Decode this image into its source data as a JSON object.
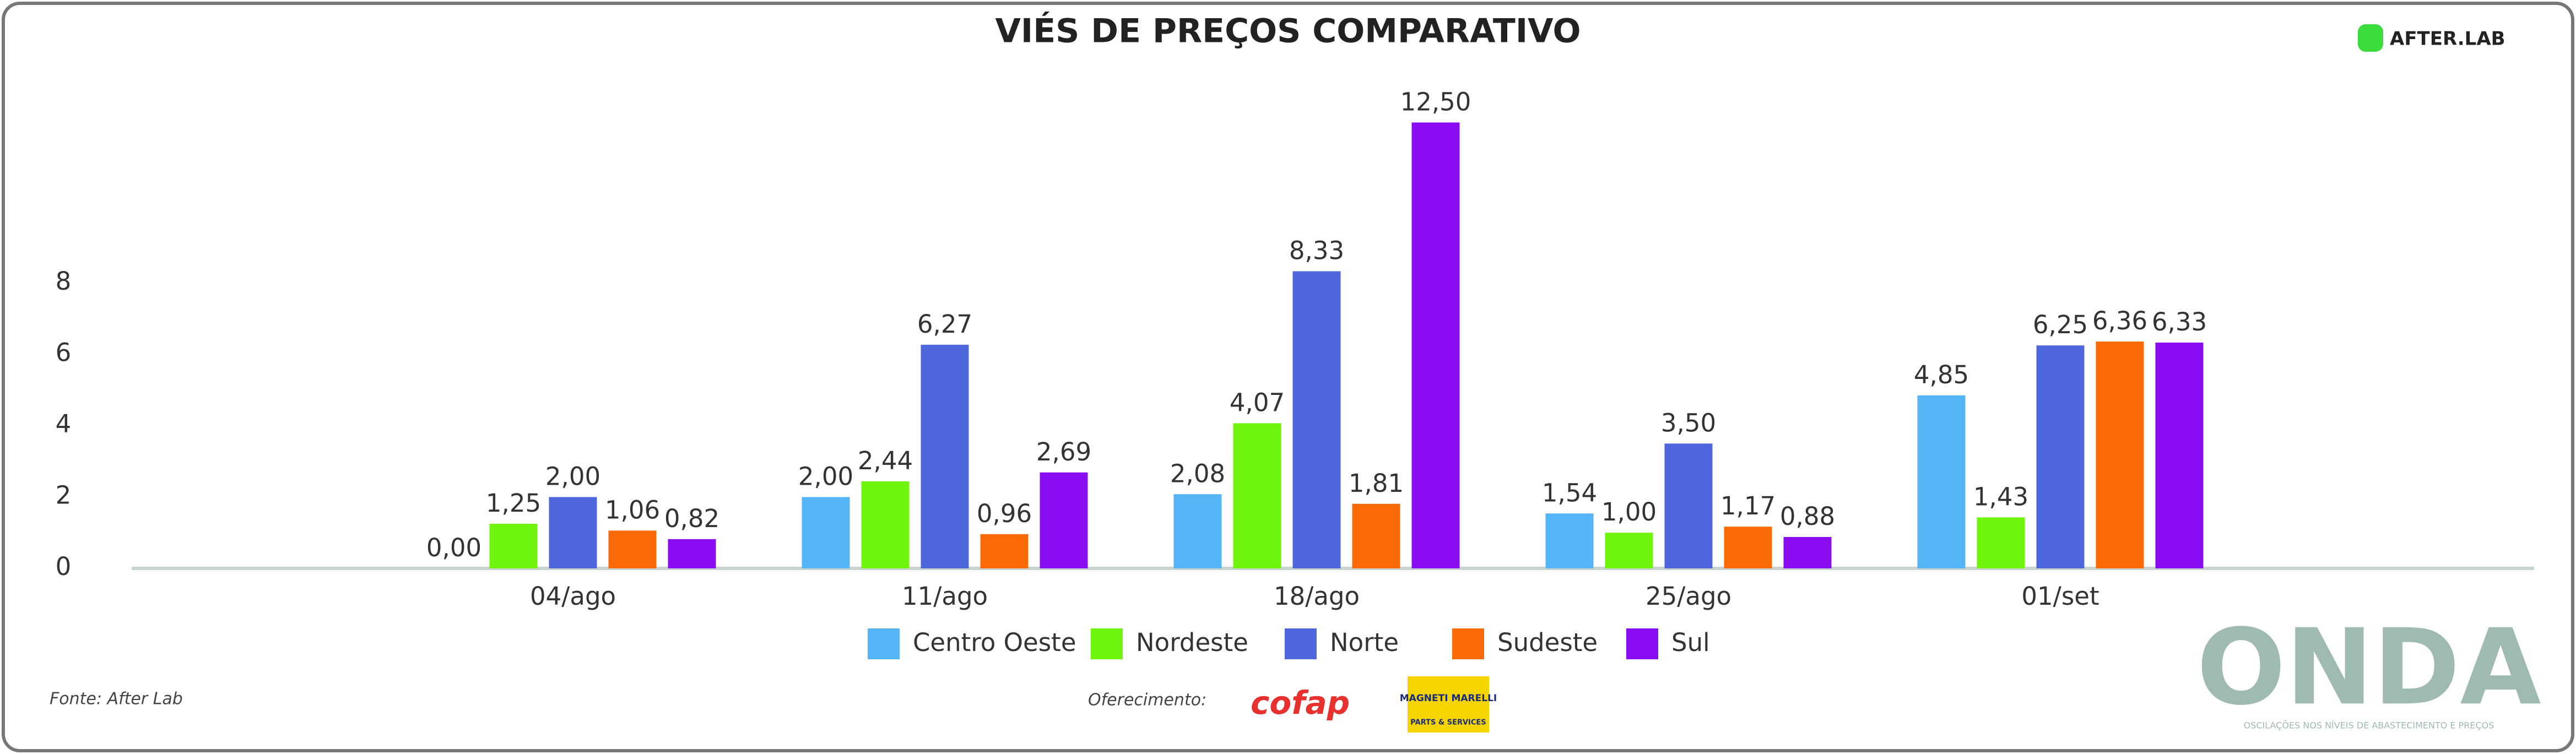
{
  "chart_data": {
    "type": "bar",
    "title": "VIÉS DE PREÇOS COMPARATIVO",
    "categories": [
      "04/ago",
      "11/ago",
      "18/ago",
      "25/ago",
      "01/set"
    ],
    "series": [
      {
        "name": "Centro Oeste",
        "color": "#55b4f6",
        "values": [
          0.0,
          2.0,
          2.08,
          1.54,
          4.85
        ],
        "value_labels": [
          "0,00",
          "2,00",
          "2,08",
          "1,54",
          "4,85"
        ]
      },
      {
        "name": "Nordeste",
        "color": "#6ff40c",
        "values": [
          1.25,
          2.44,
          4.07,
          1.0,
          1.43
        ],
        "value_labels": [
          "1,25",
          "2,44",
          "4,07",
          "1,00",
          "1,43"
        ]
      },
      {
        "name": "Norte",
        "color": "#4f67dc",
        "values": [
          2.0,
          6.27,
          8.33,
          3.5,
          6.25
        ],
        "value_labels": [
          "2,00",
          "6,27",
          "8,33",
          "3,50",
          "6,25"
        ]
      },
      {
        "name": "Sudeste",
        "color": "#fa6a06",
        "values": [
          1.06,
          0.96,
          1.81,
          1.17,
          6.36
        ],
        "value_labels": [
          "1,06",
          "0,96",
          "1,81",
          "1,17",
          "6,36"
        ]
      },
      {
        "name": "Sul",
        "color": "#8a0cf0",
        "values": [
          0.82,
          2.69,
          12.5,
          0.88,
          6.33
        ],
        "value_labels": [
          "0,82",
          "2,69",
          "12,50",
          "0,88",
          "6,33"
        ]
      }
    ],
    "ylim": [
      0,
      13
    ],
    "yticks": [
      0,
      2,
      4,
      6,
      8
    ],
    "grid": false,
    "legend": "bottom"
  },
  "branding": {
    "logo": "AFTER.LAB",
    "brand": "ONDA",
    "tagline": "OSCILAÇÕES NOS NÍVEIS DE ABASTECIMENTO E PREÇOS",
    "source": "Fonte: After Lab",
    "sponsor_label": "Oferecimento:",
    "sponsor1": "cofap",
    "sponsor2": "MAGNETI MARELLI",
    "sponsor2_sub": "PARTS & SERVICES"
  }
}
